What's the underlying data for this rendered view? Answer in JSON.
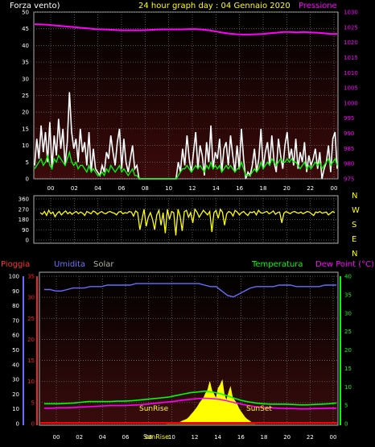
{
  "header": {
    "wind_label": "Forza vento)",
    "title": "24 hour graph day : 04 Gennaio 2020",
    "pressure_label": "Pressione"
  },
  "lower_header": {
    "rain_label": "Pioggia",
    "humidity_label": "Umidita",
    "solar_label": "Solar",
    "temp_label": "Temperatura",
    "dew_label": "Dew Point (°C)"
  },
  "annotations": {
    "sunrise": "SunRise",
    "sunset": "SunSet"
  },
  "direction_letters": [
    "N",
    "W",
    "S",
    "E",
    "N"
  ],
  "colors": {
    "wind": "#ffffff",
    "wind_avg": "#00ff00",
    "pressure": "#ff00ff",
    "direction": "#ffff00",
    "rain": "#ff0000",
    "humidity": "#6a6aff",
    "solar_label": "#b0b0a0",
    "solar": "#ffff00",
    "temperature": "#00ff00",
    "dew": "#ff00ff",
    "title": "#ffff00"
  },
  "chart_data": [
    {
      "type": "line",
      "name": "wind-pressure",
      "x_ticks": [
        "00",
        "02",
        "04",
        "06",
        "08",
        "10",
        "12",
        "14",
        "16",
        "18",
        "20",
        "22",
        "00"
      ],
      "y_left_ticks": [
        "0",
        "5",
        "10",
        "15",
        "20",
        "25",
        "30",
        "35",
        "40",
        "45",
        "50"
      ],
      "y_right_ticks": [
        "975",
        "980",
        "985",
        "990",
        "995",
        "1000",
        "1005",
        "1010",
        "1015",
        "1020",
        "1025",
        "1030"
      ],
      "ylim_left": [
        0,
        50
      ],
      "ylim_right": [
        975,
        1030
      ],
      "wind_gust": [
        4,
        12,
        6,
        16,
        8,
        14,
        5,
        17,
        3,
        13,
        7,
        18,
        9,
        15,
        4,
        11,
        26,
        14,
        9,
        12,
        5,
        15,
        8,
        11,
        4,
        14,
        2,
        9,
        3,
        2,
        1,
        4,
        2,
        8,
        6,
        13,
        8,
        4,
        11,
        15,
        3,
        12,
        5,
        2,
        6,
        10,
        3,
        4,
        0,
        0,
        0,
        0,
        0,
        0,
        0,
        0,
        0,
        0,
        0,
        0,
        0,
        0,
        0,
        0,
        0,
        0,
        5,
        2,
        9,
        4,
        13,
        6,
        2,
        8,
        14,
        3,
        10,
        7,
        1,
        11,
        5,
        16,
        3,
        8,
        6,
        12,
        2,
        9,
        11,
        4,
        13,
        7,
        2,
        10,
        3,
        15,
        6,
        0,
        2,
        1,
        4,
        9,
        2,
        6,
        15,
        3,
        8,
        11,
        4,
        13,
        5,
        2,
        12,
        7,
        3,
        10,
        14,
        6,
        9,
        4,
        12,
        3,
        8,
        5,
        11,
        2,
        7,
        4,
        6,
        9,
        3,
        8,
        0,
        3,
        5,
        10,
        2,
        12,
        14,
        3
      ],
      "wind_avg": [
        3,
        4,
        5,
        6,
        4,
        5,
        7,
        4,
        3,
        6,
        5,
        7,
        6,
        5,
        4,
        6,
        8,
        5,
        4,
        5,
        3,
        4,
        4,
        3,
        2,
        4,
        2,
        3,
        2,
        1,
        1,
        2,
        1,
        3,
        2,
        4,
        3,
        2,
        3,
        4,
        2,
        3,
        2,
        1,
        2,
        3,
        1,
        1,
        0,
        0,
        0,
        0,
        0,
        0,
        0,
        0,
        0,
        0,
        0,
        0,
        0,
        0,
        0,
        0,
        0,
        0,
        1,
        2,
        3,
        3,
        4,
        3,
        2,
        3,
        4,
        3,
        4,
        3,
        2,
        4,
        3,
        5,
        3,
        4,
        3,
        4,
        2,
        3,
        4,
        3,
        4,
        3,
        2,
        3,
        3,
        5,
        3,
        1,
        1,
        1,
        2,
        3,
        2,
        3,
        5,
        3,
        4,
        5,
        4,
        6,
        5,
        4,
        5,
        6,
        5,
        5,
        6,
        5,
        6,
        5,
        5,
        4,
        3,
        4,
        5,
        3,
        4,
        3,
        4,
        5,
        4,
        5,
        3,
        4,
        5,
        6,
        4,
        5,
        6,
        4
      ],
      "pressure": [
        1026,
        1025.9,
        1025.8,
        1025.6,
        1025.4,
        1025.2,
        1025,
        1024.8,
        1024.6,
        1024.4,
        1024.3,
        1024.2,
        1024.1,
        1024,
        1024,
        1024,
        1024,
        1024.1,
        1024.2,
        1024.3,
        1024.3,
        1024.3,
        1024.3,
        1024.4,
        1024.4,
        1024.2,
        1024,
        1023.6,
        1023.2,
        1022.9,
        1022.7,
        1022.6,
        1022.6,
        1022.7,
        1022.8,
        1023,
        1023.2,
        1023.4,
        1023.4,
        1023.3,
        1023.4,
        1023.3,
        1023.2,
        1023,
        1022.8,
        1022.8
      ]
    },
    {
      "type": "line",
      "name": "wind-direction",
      "y_ticks": [
        "360",
        "270",
        "180",
        "90",
        "0"
      ],
      "ylim": [
        0,
        360
      ],
      "direction": [
        240,
        225,
        250,
        215,
        260,
        230,
        245,
        205,
        235,
        250,
        220,
        240,
        255,
        230,
        245,
        225,
        240,
        250,
        230,
        245,
        235,
        215,
        250,
        240,
        230,
        255,
        245,
        225,
        240,
        250,
        235,
        230,
        245,
        250,
        240,
        235,
        220,
        245,
        250,
        230,
        240,
        235,
        250,
        245,
        210,
        255,
        240,
        90,
        180,
        270,
        120,
        200,
        240,
        180,
        90,
        220,
        260,
        130,
        240,
        60,
        270,
        180,
        250,
        240,
        40,
        270,
        210,
        80,
        250,
        260,
        200,
        240,
        150,
        270,
        245,
        200,
        230,
        260,
        240,
        220,
        250,
        70,
        240,
        260,
        190,
        270,
        245,
        130,
        230,
        250,
        240,
        210,
        260,
        245,
        220,
        240,
        250,
        230,
        215,
        245,
        240,
        250,
        220,
        260,
        240,
        235,
        245,
        250,
        230,
        240,
        255,
        225,
        240,
        245,
        150,
        235,
        250,
        240,
        230,
        245,
        250,
        240,
        235,
        245,
        230,
        240,
        250,
        245,
        230,
        215,
        245,
        240,
        250,
        235,
        240,
        245,
        220,
        235,
        250,
        240
      ]
    },
    {
      "type": "line",
      "name": "rain-humidity-temp",
      "x_ticks": [
        "00",
        "02",
        "04",
        "06",
        "08",
        "10",
        "12",
        "14",
        "16",
        "18",
        "20",
        "22",
        "00"
      ],
      "y_left_ticks": [
        "0",
        "10",
        "20",
        "30",
        "40",
        "50",
        "60",
        "70",
        "80",
        "90",
        "100"
      ],
      "y_rain_ticks": [
        "0",
        "5",
        "10",
        "15",
        "20",
        "25",
        "30",
        "35"
      ],
      "y_right_ticks": [
        "0",
        "5",
        "10",
        "15",
        "20",
        "25",
        "30",
        "35",
        "40"
      ],
      "ylim_humidity": [
        0,
        100
      ],
      "ylim_rain": [
        0,
        35
      ],
      "ylim_temp": [
        0,
        40
      ],
      "humidity": [
        91,
        91,
        90,
        90,
        91,
        92,
        92,
        92,
        93,
        93,
        93,
        94,
        94,
        94,
        94,
        94,
        95,
        95,
        95,
        95,
        95,
        95,
        95,
        95,
        95,
        95,
        95,
        95,
        94,
        93,
        93,
        90,
        87,
        86,
        88,
        90,
        92,
        93,
        93,
        93,
        93,
        94,
        94,
        94,
        93,
        93,
        93,
        93,
        93,
        94,
        94,
        94
      ],
      "temperature": [
        5.4,
        5.4,
        5.4,
        5.5,
        5.6,
        5.8,
        6,
        6,
        6,
        6,
        6.1,
        6.1,
        6.2,
        6.4,
        6.6,
        6.8,
        7,
        7.2,
        7.6,
        8,
        8.4,
        8.6,
        8.8,
        8.6,
        8.2,
        7.6,
        6.9,
        6.3,
        5.9,
        5.6,
        5.4,
        5.3,
        5.3,
        5.3,
        5.2,
        5.1,
        5.1,
        5.2,
        5.3,
        5.4,
        5.6
      ],
      "dew_point": [
        4.2,
        4.2,
        4.3,
        4.3,
        4.4,
        4.5,
        4.6,
        4.7,
        4.8,
        4.9,
        4.9,
        4.9,
        5,
        5.1,
        5.3,
        5.5,
        5.7,
        5.9,
        6.1,
        6.4,
        6.6,
        6.8,
        6.9,
        6.8,
        6.6,
        6.2,
        5.7,
        5.3,
        4.9,
        4.6,
        4.4,
        4.3,
        4.2,
        4.1,
        4.1,
        4,
        4,
        4.1,
        4.1,
        4.2,
        4.2
      ],
      "rain": 0,
      "solar_ratio": [
        0,
        0,
        0,
        0,
        0,
        0.1,
        0.3,
        0.5,
        0.8,
        1,
        1.3,
        1.8,
        2.5,
        3.1,
        3.8,
        4.6,
        5.5,
        6.3,
        7,
        8.3,
        9.2,
        11.4,
        9,
        8,
        6.8,
        9.6,
        10.5,
        11.8,
        8,
        6.3,
        8.3,
        10,
        7.1,
        6.3,
        5.5,
        4.2,
        3.3,
        2.5,
        1.7,
        1.2,
        0.8,
        0.4,
        0.1,
        0
      ]
    }
  ]
}
